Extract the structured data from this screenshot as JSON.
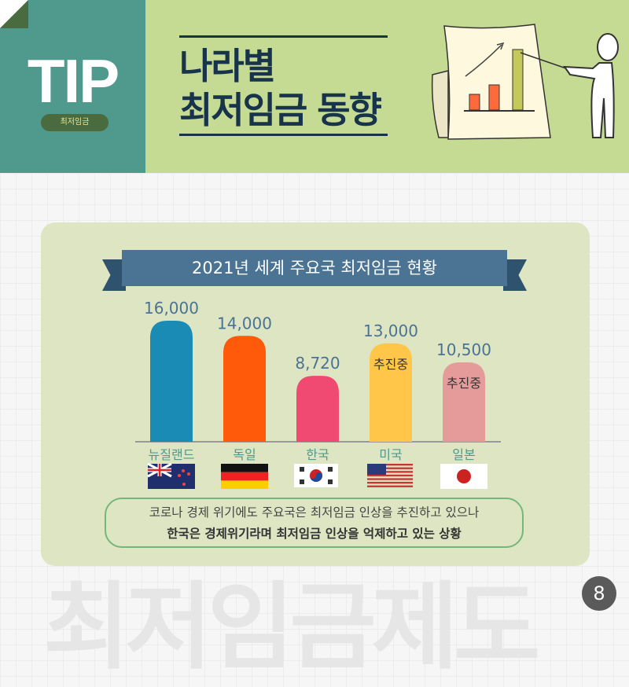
{
  "header": {
    "tip": "TIP",
    "badge": "최저임금",
    "title_line1": "나라별",
    "title_line2": "최저임금 동향"
  },
  "ribbon": "2021년 세계 주요국 최저임금 현황",
  "chart_data": {
    "type": "bar",
    "title": "2021년 세계 주요국 최저임금 현황",
    "categories": [
      "뉴질랜드",
      "독일",
      "한국",
      "미국",
      "일본"
    ],
    "values": [
      16000,
      14000,
      8720,
      13000,
      10500
    ],
    "value_labels": [
      "16,000",
      "14,000",
      "8,720",
      "13,000",
      "10,500"
    ],
    "annotations": [
      "",
      "",
      "",
      "추진중",
      "추진중"
    ],
    "colors": [
      "#1a8bb5",
      "#ff5a0a",
      "#f04a72",
      "#ffc64a",
      "#e69b9b"
    ],
    "flags": [
      "new-zealand-flag",
      "germany-flag",
      "south-korea-flag",
      "usa-flag",
      "japan-flag"
    ],
    "ylim": [
      0,
      16000
    ],
    "grid": false
  },
  "message": {
    "line1": "코로나 경제 위기에도 주요국은 최저임금 인상을 추진하고 있으나",
    "line2": "한국은 경제위기라며 최저임금 인상을 억제하고 있는 상황"
  },
  "watermark": "최저임금제도",
  "page": "8"
}
